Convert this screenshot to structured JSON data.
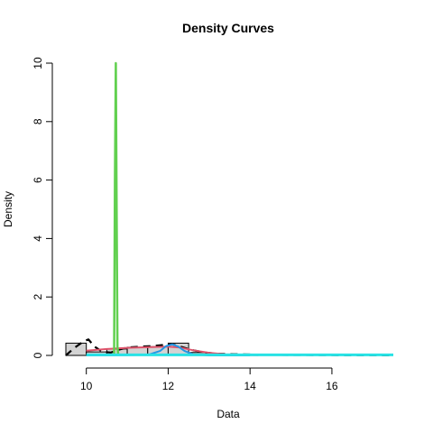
{
  "chart_data": {
    "type": "histogram",
    "title": "Density Curves",
    "xlabel": "Data",
    "ylabel": "Density",
    "xlim": [
      9.5,
      17.5
    ],
    "ylim": [
      0,
      10
    ],
    "x_ticks": [
      10,
      12,
      14,
      16
    ],
    "y_ticks": [
      0,
      2,
      4,
      6,
      8,
      10
    ],
    "histogram": {
      "fill": "#d3d3d3",
      "bins": [
        {
          "x0": 9.5,
          "x1": 10.0,
          "density": 0.42
        },
        {
          "x0": 10.0,
          "x1": 10.5,
          "density": 0.12
        },
        {
          "x0": 10.5,
          "x1": 11.0,
          "density": 0.22
        },
        {
          "x0": 11.0,
          "x1": 11.5,
          "density": 0.28
        },
        {
          "x0": 11.5,
          "x1": 12.0,
          "density": 0.3
        },
        {
          "x0": 12.0,
          "x1": 12.5,
          "density": 0.42
        },
        {
          "x0": 12.5,
          "x1": 13.0,
          "density": 0.1
        },
        {
          "x0": 13.0,
          "x1": 13.5,
          "density": 0.04
        },
        {
          "x0": 13.5,
          "x1": 14.0,
          "density": 0.02
        },
        {
          "x0": 14.0,
          "x1": 14.5,
          "density": 0.01
        }
      ]
    },
    "series": [
      {
        "color": "#000000",
        "dash": "8,6",
        "width": 2.2,
        "x": [
          9.5,
          9.7,
          9.9,
          10.05,
          10.2,
          10.4,
          10.6,
          10.8,
          11.0,
          11.3,
          11.6,
          11.9,
          12.1,
          12.3,
          12.6,
          12.9,
          13.2,
          13.6,
          14.0,
          14.5,
          15.0,
          16.0,
          17.0,
          17.5
        ],
        "y": [
          0.0,
          0.25,
          0.45,
          0.55,
          0.3,
          0.12,
          0.1,
          0.2,
          0.27,
          0.3,
          0.32,
          0.36,
          0.38,
          0.3,
          0.18,
          0.1,
          0.06,
          0.04,
          0.03,
          0.02,
          0.015,
          0.01,
          0.005,
          0.0
        ]
      },
      {
        "color": "#df536b",
        "dash": "",
        "width": 2,
        "x": [
          10.0,
          10.5,
          11.0,
          11.5,
          12.0,
          12.3,
          12.6,
          13.0,
          13.4,
          13.8,
          14.2
        ],
        "y": [
          0.16,
          0.22,
          0.26,
          0.28,
          0.3,
          0.27,
          0.18,
          0.09,
          0.04,
          0.02,
          0.01
        ]
      },
      {
        "color": "#61d04f",
        "dash": "",
        "width": 2.5,
        "x": [
          10.68,
          10.7,
          10.72,
          10.74,
          10.76,
          10.78
        ],
        "y": [
          0.0,
          5.9,
          10.0,
          5.0,
          0.3,
          0.0
        ]
      },
      {
        "color": "#2297e6",
        "dash": "",
        "width": 2,
        "x": [
          10.0,
          11.5,
          11.8,
          11.95,
          12.1,
          12.25,
          12.4,
          12.6,
          13.0,
          14.0
        ],
        "y": [
          0.0,
          0.02,
          0.15,
          0.32,
          0.38,
          0.3,
          0.15,
          0.04,
          0.0,
          0.0
        ]
      },
      {
        "color": "#28e2e5",
        "dash": "",
        "width": 3,
        "x": [
          10.0,
          12.0,
          13.0,
          14.0,
          15.0,
          16.0,
          17.0,
          17.5
        ],
        "y": [
          0.02,
          0.02,
          0.02,
          0.02,
          0.02,
          0.02,
          0.02,
          0.02
        ]
      }
    ]
  }
}
